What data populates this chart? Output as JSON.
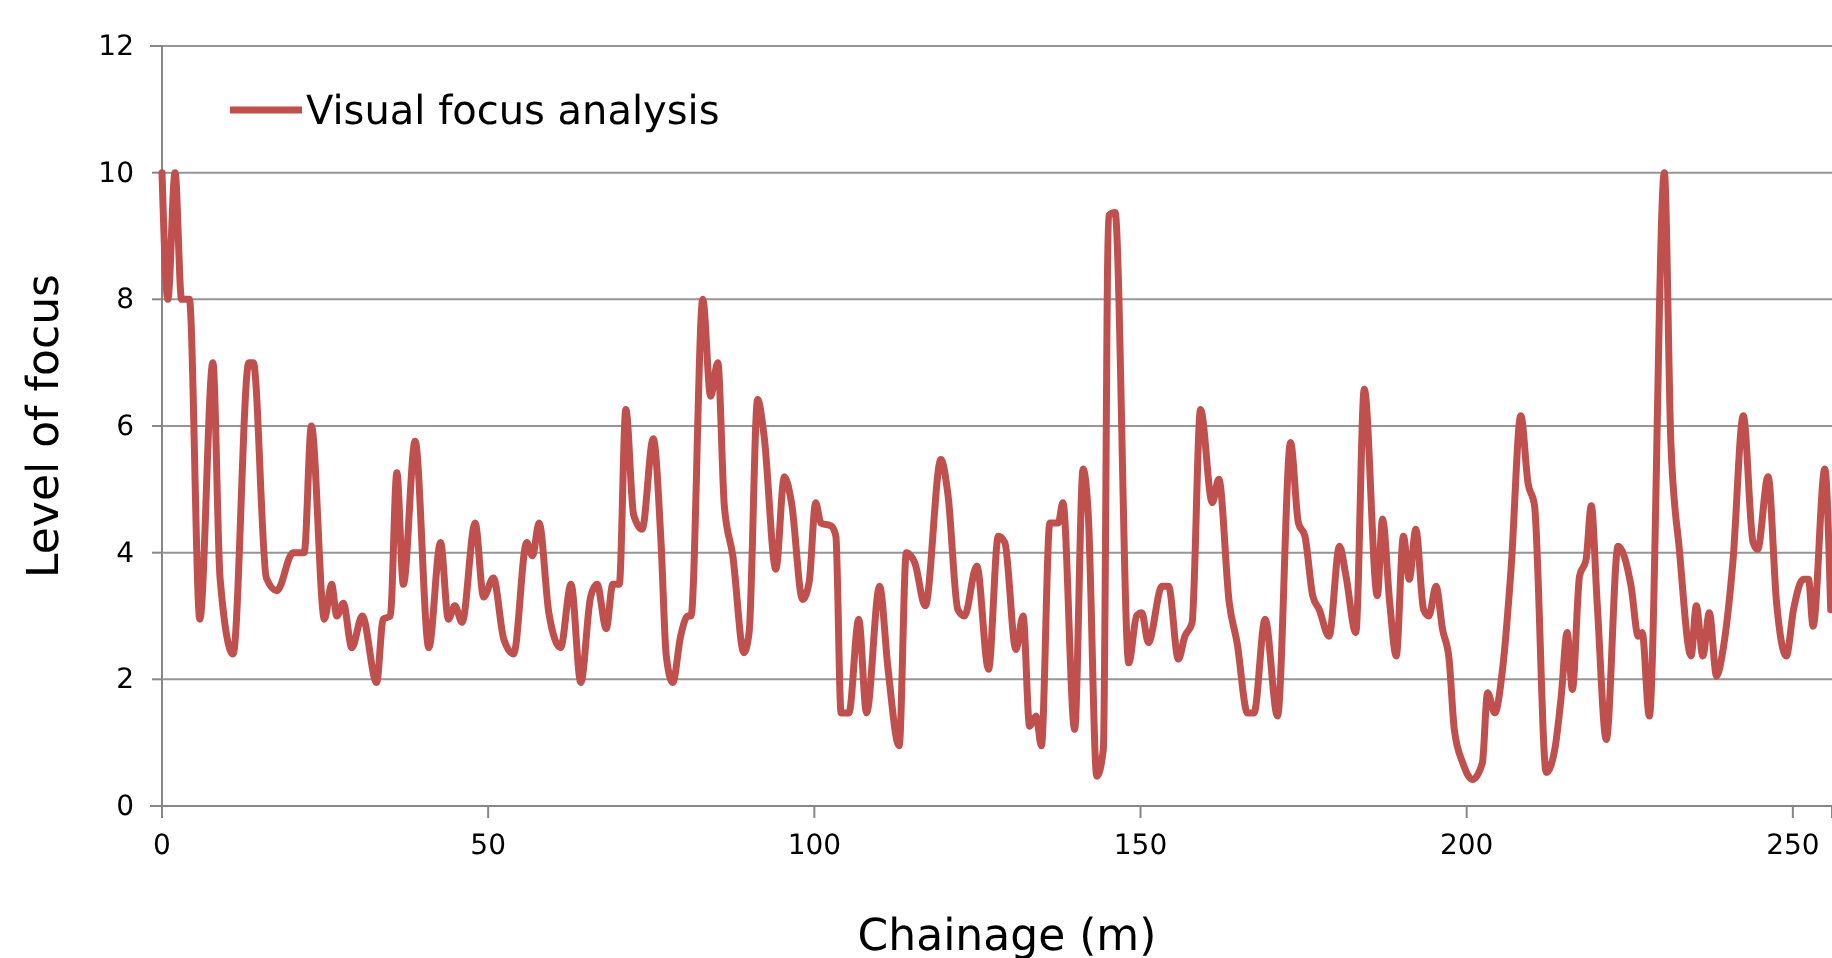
{
  "chart_data": {
    "type": "line",
    "xlabel": "Chainage (m)",
    "ylabel": "Level of focus",
    "xlim": [
      0,
      256
    ],
    "ylim": [
      0,
      12
    ],
    "xticks": [
      0,
      50,
      100,
      150,
      200,
      250
    ],
    "yticks": [
      0,
      2,
      4,
      6,
      8,
      10,
      12
    ],
    "grid": "y",
    "legend": "top left",
    "marker": "none",
    "line_style": "solid",
    "series": [
      {
        "name": "Visual focus analysis",
        "color": "#c0504d",
        "x": [
          0,
          0.9,
          2.0,
          3.0,
          4.2,
          5.8,
          7.8,
          8.9,
          10.9,
          13.3,
          14.0,
          16.0,
          17.6,
          20.1,
          21.8,
          22.9,
          24.9,
          26.0,
          26.8,
          27.8,
          29.1,
          30.7,
          32.9,
          33.9,
          35.0,
          36.0,
          37.0,
          38.8,
          40.9,
          42.7,
          43.9,
          44.9,
          46.0,
          48.0,
          49.3,
          50.8,
          52.4,
          53.9,
          55.9,
          56.8,
          57.8,
          59.3,
          61.1,
          62.7,
          64.2,
          65.7,
          66.7,
          68.1,
          69.1,
          70.1,
          71.1,
          72.3,
          73.6,
          75.3,
          76.5,
          77.3,
          78.3,
          79.5,
          80.6,
          81.1,
          82.9,
          84.1,
          85.2,
          86.2,
          87.5,
          89.2,
          90.0,
          91.3,
          92.3,
          94.1,
          95.4,
          96.5,
          98.2,
          99.2,
          100.2,
          101.0,
          102.6,
          103.3,
          104.1,
          105.3,
          106.8,
          108.0,
          110.0,
          111.3,
          113.0,
          114.1,
          115.4,
          117.0,
          119.4,
          120.5,
          122.0,
          123.0,
          124.9,
          126.7,
          128.2,
          129.2,
          130.9,
          132.0,
          133.0,
          134.0,
          134.8,
          136.1,
          137.4,
          138.1,
          139.9,
          141.2,
          142.0,
          143.3,
          144.3,
          145.1,
          146.1,
          148.2,
          149.4,
          150.2,
          151.2,
          153.3,
          154.3,
          155.8,
          156.8,
          157.9,
          159.2,
          161.0,
          162.0,
          163.6,
          164.8,
          166.4,
          167.4,
          169.1,
          171.0,
          173.0,
          174.2,
          175.2,
          176.4,
          177.4,
          178.9,
          180.5,
          181.5,
          183.0,
          184.3,
          186.3,
          187.1,
          188.2,
          189.2,
          190.3,
          191.2,
          192.2,
          193.4,
          194.2,
          195.3,
          196.3,
          197.3,
          198.1,
          199.4,
          200.9,
          202.4,
          203.2,
          204.3,
          205.5,
          206.8,
          208.3,
          209.4,
          210.4,
          212.2,
          213.5,
          214.5,
          215.4,
          216.2,
          217.3,
          218.3,
          219.1,
          220.0,
          221.4,
          223.2,
          225.2,
          226.3,
          226.9,
          228.0,
          230.3,
          231.3,
          232.6,
          234.4,
          235.2,
          236.2,
          237.2,
          238.3,
          239.3,
          240.8,
          242.4,
          243.9,
          244.6,
          246.2,
          247.5,
          249.0,
          250.1,
          251.6,
          252.4,
          253.1,
          254.9,
          255.8
        ],
        "values": [
          10,
          8,
          10,
          8,
          8,
          2.95,
          7,
          3.6,
          2.4,
          7,
          7,
          3.6,
          3.4,
          4.0,
          4.0,
          6.0,
          2.95,
          3.5,
          3.0,
          3.2,
          2.5,
          3.0,
          1.95,
          2.95,
          3.0,
          5.26,
          3.5,
          5.76,
          2.5,
          4.16,
          2.95,
          3.16,
          2.9,
          4.47,
          3.3,
          3.6,
          2.63,
          2.4,
          4.16,
          3.95,
          4.47,
          3.05,
          2.5,
          3.5,
          1.95,
          3.3,
          3.5,
          2.8,
          3.5,
          3.5,
          6.26,
          4.6,
          4.37,
          5.8,
          4.16,
          2.37,
          1.95,
          2.68,
          3.0,
          3.0,
          8.0,
          6.47,
          7.0,
          4.74,
          3.95,
          2.42,
          2.74,
          6.42,
          5.84,
          3.74,
          5.2,
          4.79,
          3.26,
          3.53,
          4.79,
          4.47,
          4.42,
          4.26,
          1.47,
          1.47,
          2.95,
          1.47,
          3.47,
          2.16,
          0.95,
          4.0,
          3.84,
          3.16,
          5.47,
          4.9,
          3.1,
          3.0,
          3.79,
          2.16,
          4.26,
          4.16,
          2.47,
          3.0,
          1.26,
          1.42,
          0.95,
          4.47,
          4.47,
          4.79,
          1.21,
          5.32,
          4.58,
          0.47,
          0.89,
          9.32,
          9.37,
          2.26,
          3.0,
          3.05,
          2.58,
          3.47,
          3.47,
          2.32,
          2.68,
          2.89,
          6.26,
          4.79,
          5.16,
          3.21,
          2.58,
          1.47,
          1.47,
          2.95,
          1.42,
          5.74,
          4.47,
          4.26,
          3.32,
          3.1,
          2.68,
          4.1,
          3.63,
          2.74,
          6.58,
          3.32,
          4.53,
          3.21,
          2.37,
          4.26,
          3.58,
          4.37,
          3.1,
          3.0,
          3.47,
          2.79,
          2.32,
          1.21,
          0.68,
          0.42,
          0.68,
          1.79,
          1.47,
          2.16,
          3.74,
          6.16,
          5.1,
          4.74,
          0.53,
          0.89,
          1.74,
          2.74,
          1.84,
          3.63,
          3.89,
          4.74,
          3.21,
          1.05,
          4.1,
          3.47,
          2.68,
          2.74,
          1.42,
          10,
          5.74,
          4.05,
          2.37,
          3.16,
          2.37,
          3.05,
          2.05,
          2.47,
          3.84,
          6.16,
          4.16,
          4.05,
          5.2,
          3.21,
          2.37,
          3.1,
          3.58,
          3.58,
          2.84,
          5.32,
          3.1
        ]
      }
    ]
  }
}
